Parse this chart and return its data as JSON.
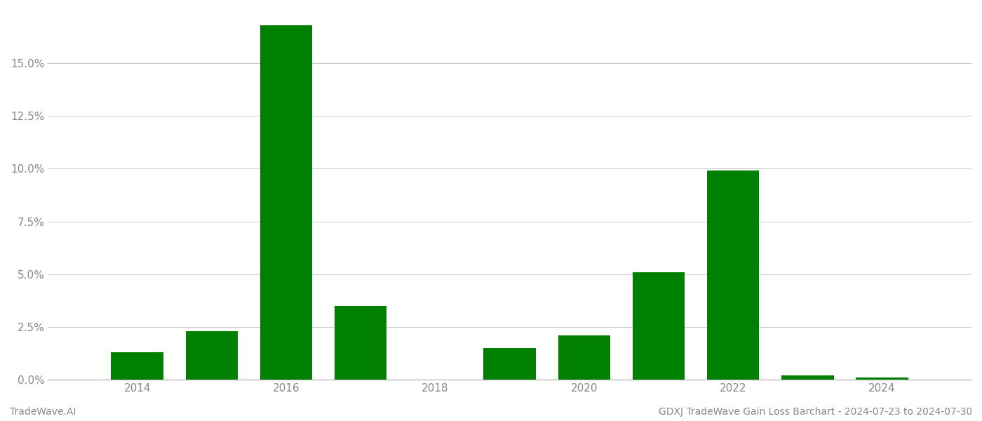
{
  "years": [
    2014,
    2015,
    2016,
    2017,
    2018,
    2019,
    2020,
    2021,
    2022,
    2023,
    2024
  ],
  "values": [
    0.013,
    0.023,
    0.168,
    0.035,
    0.0,
    0.015,
    0.021,
    0.051,
    0.099,
    0.002,
    0.001
  ],
  "bar_color": "#008000",
  "background_color": "#ffffff",
  "grid_color": "#cccccc",
  "ylabel_color": "#888888",
  "xlabel_color": "#888888",
  "footer_left": "TradeWave.AI",
  "footer_right": "GDXJ TradeWave Gain Loss Barchart - 2024-07-23 to 2024-07-30",
  "footer_color": "#888888",
  "ylim_max": 0.175,
  "yticks": [
    0.0,
    0.025,
    0.05,
    0.075,
    0.1,
    0.125,
    0.15
  ],
  "ytick_labels": [
    "0.0%",
    "2.5%",
    "5.0%",
    "7.5%",
    "10.0%",
    "12.5%",
    "15.0%"
  ],
  "xticks": [
    2014,
    2016,
    2018,
    2020,
    2022,
    2024
  ],
  "bar_width": 0.7,
  "spine_color": "#aaaaaa",
  "xlim_min": 2012.8,
  "xlim_max": 2025.2
}
